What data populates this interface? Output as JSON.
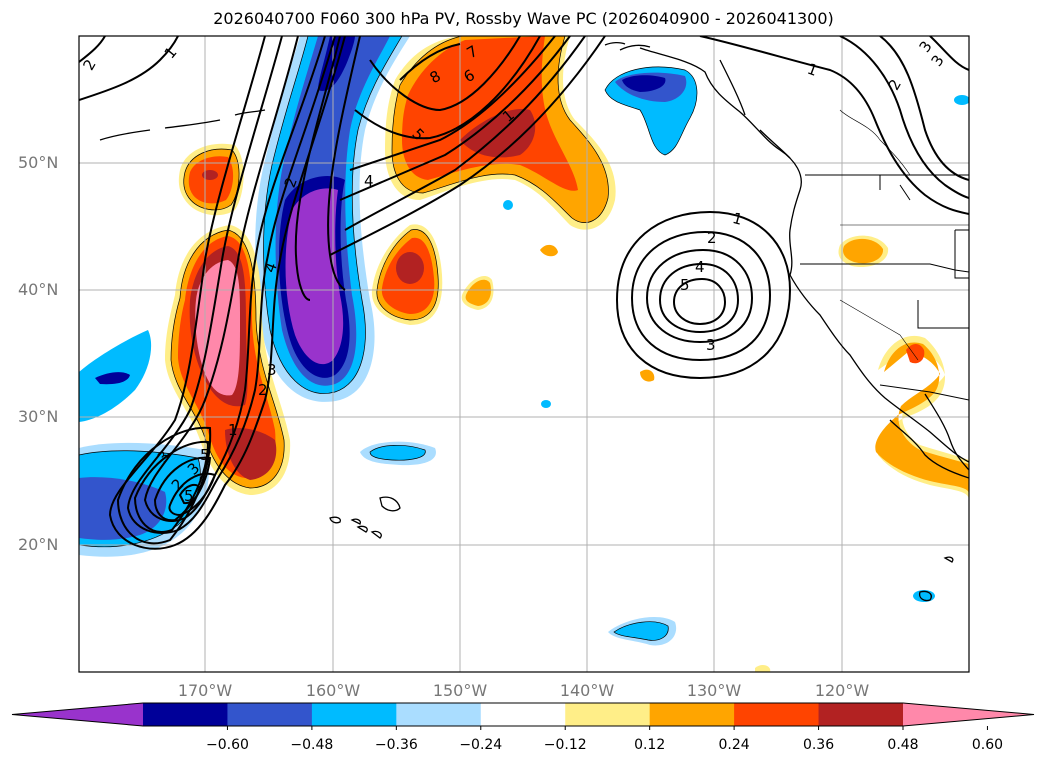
{
  "title": "2026040700 F060 300 hPa PV, Rossby Wave PC (2026040900 - 2026041300)",
  "latitude_labels": [
    "50°N",
    "40°N",
    "30°N",
    "20°N"
  ],
  "longitude_labels": [
    "170°W",
    "160°W",
    "150°W",
    "140°W",
    "130°W",
    "120°W"
  ],
  "colorbar": {
    "ticks": [
      "−0.60",
      "−0.48",
      "−0.36",
      "−0.24",
      "−0.12",
      "0.12",
      "0.24",
      "0.36",
      "0.48",
      "0.60"
    ],
    "colors": [
      "#9933cc",
      "#000099",
      "#3355cc",
      "#00bbff",
      "#aaddff",
      "#ffffff",
      "#ffee88",
      "#ffa500",
      "#ff4400",
      "#b22222",
      "#ff88aa"
    ]
  },
  "contour_labels": {
    "l1": "1",
    "l2": "2",
    "l3": "3",
    "l4": "4",
    "l5": "5",
    "l6": "6",
    "l7": "7",
    "l8": "8",
    "l9": "1",
    "l10": "2",
    "l11": "4",
    "l12": "5",
    "l13": "3",
    "l14": "2",
    "l15": "3",
    "l16": "5",
    "l17": "1",
    "l18": "2",
    "l19": "3",
    "l20": "1",
    "l21": "2",
    "l22": "3",
    "l23": "4",
    "l24": "5",
    "l25": "1",
    "l26": "2",
    "l27": "3"
  }
}
